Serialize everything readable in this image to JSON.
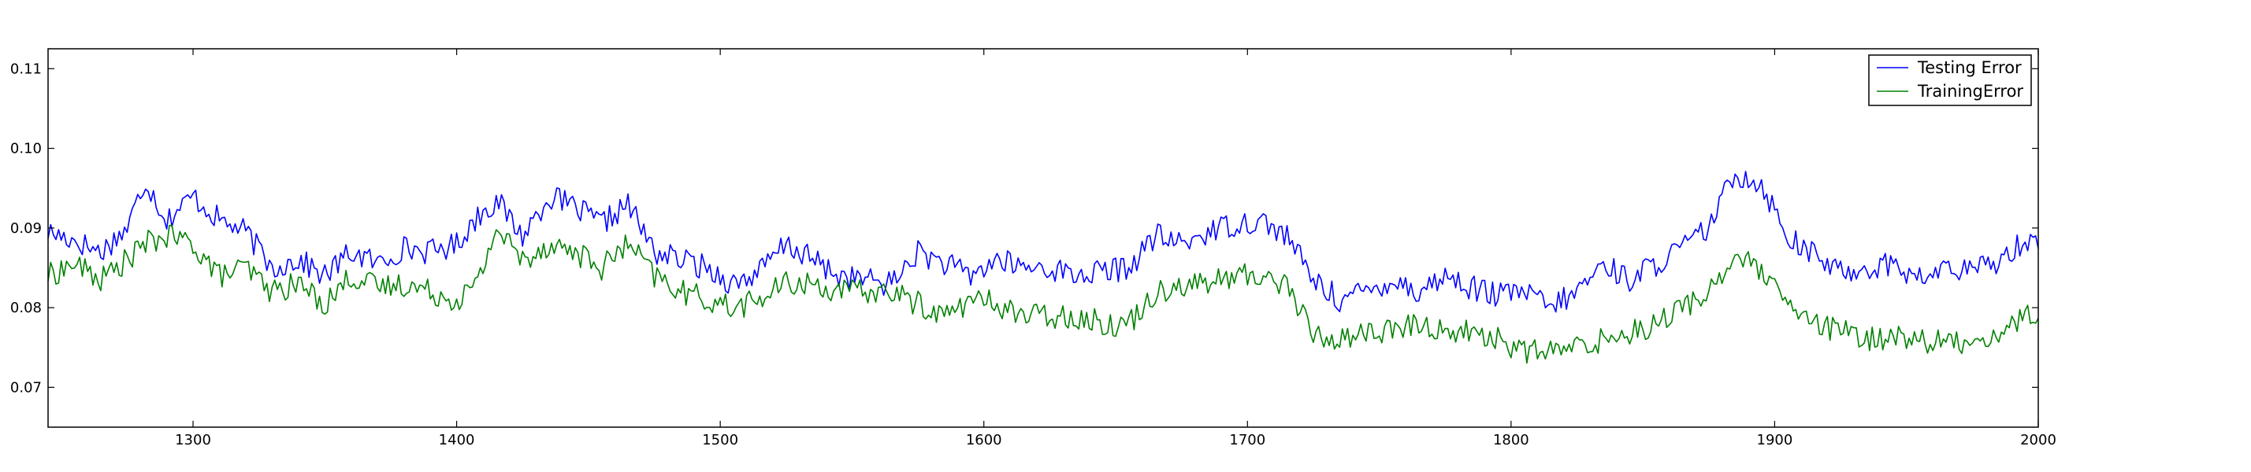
{
  "chart_data": {
    "type": "line",
    "title": "",
    "xlabel": "",
    "ylabel": "",
    "xlim": [
      1245,
      2000
    ],
    "ylim": [
      0.065,
      0.1125
    ],
    "x_ticks": [
      1300,
      1400,
      1500,
      1600,
      1700,
      1800,
      1900,
      2000
    ],
    "y_ticks": [
      0.07,
      0.08,
      0.09,
      0.1,
      0.11
    ],
    "x_tick_labels": [
      "1300",
      "1400",
      "1500",
      "1600",
      "1700",
      "1800",
      "1900",
      "2000"
    ],
    "y_tick_labels": [
      "0.07",
      "0.08",
      "0.09",
      "0.10",
      "0.11"
    ],
    "grid": false,
    "legend_position": "top-right",
    "series": [
      {
        "name": "Testing Error",
        "color": "#0000ff",
        "x": [
          1245,
          1255,
          1265,
          1275,
          1282,
          1290,
          1300,
          1310,
          1320,
          1330,
          1340,
          1350,
          1360,
          1370,
          1380,
          1390,
          1400,
          1408,
          1415,
          1425,
          1435,
          1445,
          1455,
          1465,
          1475,
          1485,
          1495,
          1505,
          1515,
          1525,
          1535,
          1545,
          1555,
          1565,
          1575,
          1585,
          1595,
          1605,
          1615,
          1625,
          1635,
          1645,
          1655,
          1665,
          1675,
          1685,
          1695,
          1705,
          1715,
          1725,
          1735,
          1745,
          1755,
          1765,
          1775,
          1785,
          1795,
          1805,
          1815,
          1825,
          1835,
          1845,
          1855,
          1865,
          1875,
          1885,
          1895,
          1905,
          1915,
          1925,
          1935,
          1945,
          1955,
          1965,
          1975,
          1985,
          1995,
          2000
        ],
        "y": [
          0.0895,
          0.0885,
          0.087,
          0.09,
          0.096,
          0.091,
          0.094,
          0.091,
          0.0895,
          0.085,
          0.086,
          0.084,
          0.087,
          0.0855,
          0.0875,
          0.087,
          0.088,
          0.0915,
          0.0935,
          0.089,
          0.094,
          0.0925,
          0.0905,
          0.093,
          0.087,
          0.086,
          0.085,
          0.083,
          0.0845,
          0.088,
          0.086,
          0.084,
          0.0835,
          0.083,
          0.087,
          0.0855,
          0.084,
          0.086,
          0.085,
          0.085,
          0.084,
          0.0845,
          0.085,
          0.089,
          0.088,
          0.0895,
          0.0905,
          0.091,
          0.089,
          0.0835,
          0.081,
          0.082,
          0.0835,
          0.082,
          0.084,
          0.0825,
          0.0815,
          0.082,
          0.08,
          0.082,
          0.0855,
          0.0835,
          0.0855,
          0.0875,
          0.09,
          0.097,
          0.0955,
          0.089,
          0.0865,
          0.0845,
          0.085,
          0.0855,
          0.0835,
          0.085,
          0.0845,
          0.086,
          0.0885,
          0.088
        ]
      },
      {
        "name": "TrainingError",
        "color": "#008000",
        "x": [
          1245,
          1255,
          1265,
          1275,
          1282,
          1290,
          1300,
          1310,
          1320,
          1330,
          1340,
          1350,
          1360,
          1370,
          1380,
          1390,
          1400,
          1408,
          1415,
          1425,
          1435,
          1445,
          1455,
          1465,
          1475,
          1485,
          1495,
          1505,
          1515,
          1525,
          1535,
          1545,
          1555,
          1565,
          1575,
          1585,
          1595,
          1605,
          1615,
          1625,
          1635,
          1645,
          1655,
          1665,
          1675,
          1685,
          1695,
          1705,
          1715,
          1725,
          1735,
          1745,
          1755,
          1765,
          1775,
          1785,
          1795,
          1805,
          1815,
          1825,
          1835,
          1845,
          1855,
          1865,
          1875,
          1885,
          1895,
          1905,
          1915,
          1925,
          1935,
          1945,
          1955,
          1965,
          1975,
          1985,
          1995,
          2000
        ],
        "y": [
          0.084,
          0.0855,
          0.0835,
          0.086,
          0.088,
          0.089,
          0.088,
          0.084,
          0.085,
          0.082,
          0.083,
          0.0805,
          0.084,
          0.0825,
          0.083,
          0.082,
          0.081,
          0.083,
          0.09,
          0.086,
          0.088,
          0.087,
          0.085,
          0.088,
          0.084,
          0.082,
          0.081,
          0.08,
          0.081,
          0.083,
          0.083,
          0.082,
          0.082,
          0.082,
          0.0805,
          0.079,
          0.081,
          0.0805,
          0.079,
          0.079,
          0.079,
          0.078,
          0.078,
          0.082,
          0.083,
          0.083,
          0.084,
          0.084,
          0.083,
          0.0765,
          0.076,
          0.077,
          0.077,
          0.078,
          0.077,
          0.077,
          0.076,
          0.0745,
          0.0745,
          0.075,
          0.076,
          0.077,
          0.078,
          0.08,
          0.082,
          0.0865,
          0.0845,
          0.08,
          0.078,
          0.077,
          0.076,
          0.0765,
          0.076,
          0.0755,
          0.076,
          0.0765,
          0.079,
          0.0795
        ]
      }
    ]
  }
}
